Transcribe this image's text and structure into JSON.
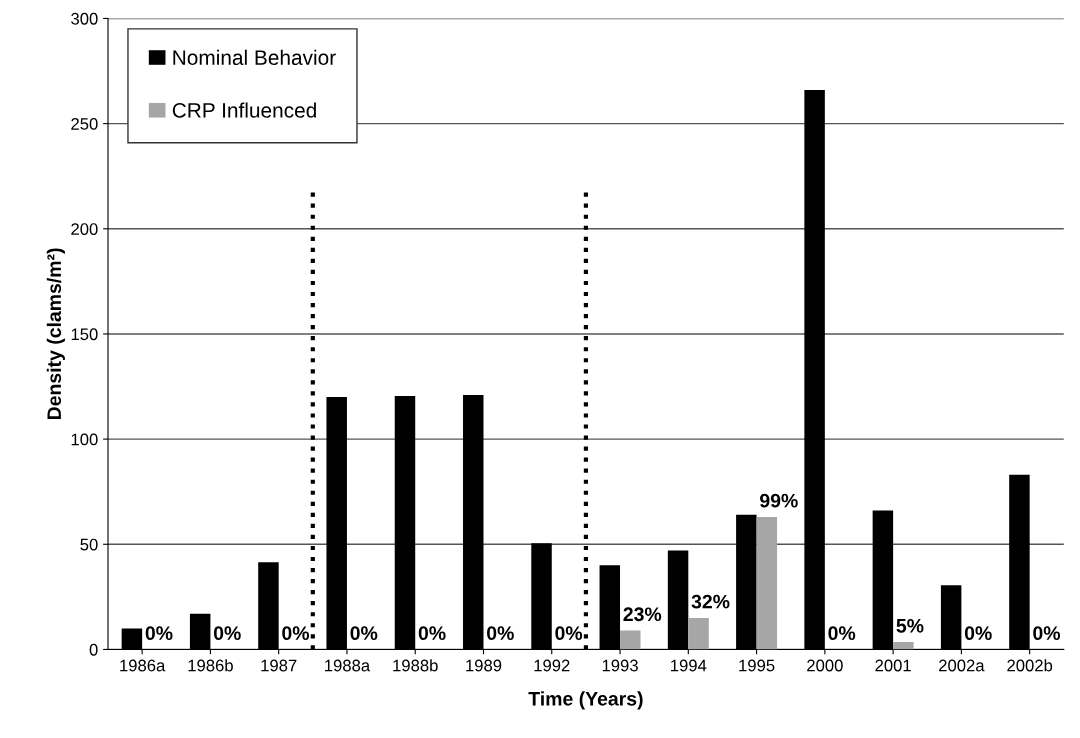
{
  "chart_data": {
    "type": "bar",
    "xlabel": "Time (Years)",
    "ylabel": "Density (clams/m²)",
    "categories": [
      "1986a",
      "1986b",
      "1987",
      "1988a",
      "1988b",
      "1989",
      "1992",
      "1993",
      "1994",
      "1995",
      "2000",
      "2001",
      "2002a",
      "2002b"
    ],
    "series": [
      {
        "name": "Nominal Behavior",
        "color": "#000000",
        "values": [
          10,
          17,
          41.5,
          120,
          120.5,
          121,
          50.5,
          40,
          47,
          64,
          266,
          66,
          30.5,
          83
        ]
      },
      {
        "name": "CRP Influenced",
        "color": "#a6a6a6",
        "values": [
          0,
          0,
          0,
          0,
          0,
          0,
          0,
          9,
          15,
          63,
          0,
          3.5,
          0,
          0
        ]
      }
    ],
    "annotations": [
      {
        "text": "0%",
        "x": "1986a",
        "y": 0
      },
      {
        "text": "0%",
        "x": "1986b",
        "y": 0
      },
      {
        "text": "0%",
        "x": "1987",
        "y": 0
      },
      {
        "text": "0%",
        "x": "1988a",
        "y": 0
      },
      {
        "text": "0%",
        "x": "1988b",
        "y": 0
      },
      {
        "text": "0%",
        "x": "1989",
        "y": 0
      },
      {
        "text": "0%",
        "x": "1992",
        "y": 0
      },
      {
        "text": "23%",
        "x": "1993",
        "y": 9
      },
      {
        "text": "32%",
        "x": "1994",
        "y": 15
      },
      {
        "text": "99%",
        "x": "1995",
        "y": 63
      },
      {
        "text": "0%",
        "x": "2000",
        "y": 0
      },
      {
        "text": "5%",
        "x": "2001",
        "y": 3.5
      },
      {
        "text": "0%",
        "x": "2002a",
        "y": 0
      },
      {
        "text": "0%",
        "x": "2002b",
        "y": 0
      }
    ],
    "ylim": [
      0,
      300
    ],
    "yticks": [
      0,
      50,
      100,
      150,
      200,
      250,
      300
    ],
    "grid": "y",
    "legend": "top left"
  }
}
